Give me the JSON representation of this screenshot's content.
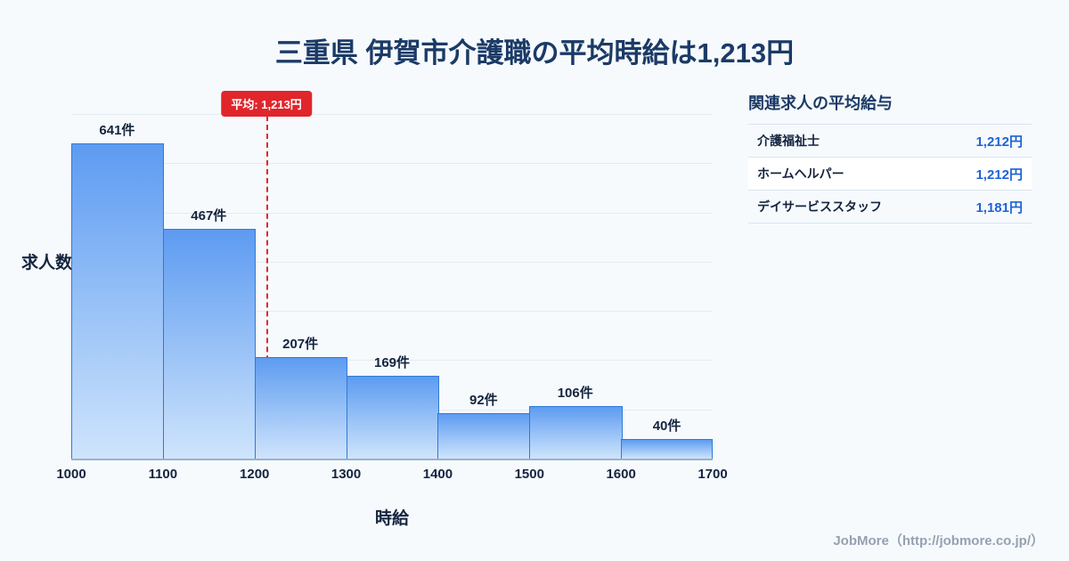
{
  "page": {
    "title": "三重県 伊賀市介護職の平均時給は1,213円",
    "footer": "JobMore（http://jobmore.co.jp/）"
  },
  "chart_data": {
    "type": "bar",
    "title": "三重県 伊賀市介護職の平均時給は1,213円",
    "xlabel": "時給",
    "ylabel": "求人数",
    "categories": [
      "1000-1100",
      "1100-1200",
      "1200-1300",
      "1300-1400",
      "1400-1500",
      "1500-1600",
      "1600-1700"
    ],
    "values": [
      641,
      467,
      207,
      169,
      92,
      106,
      40
    ],
    "bar_labels": [
      "641件",
      "467件",
      "207件",
      "169件",
      "92件",
      "106件",
      "40件"
    ],
    "x_ticks": [
      "1000",
      "1100",
      "1200",
      "1300",
      "1400",
      "1500",
      "1600",
      "1700"
    ],
    "xlim": [
      1000,
      1700
    ],
    "ylim": [
      0,
      740
    ],
    "grid": "horizontal",
    "legend": "none",
    "average": 1213,
    "average_label": "平均: 1,213円",
    "colors": {
      "bar_top": "#5d9bf1",
      "bar_bottom": "#cfe4fc",
      "bar_border": "#2e7ad8",
      "average_line": "#e02a2a",
      "title_text": "#1b3a66",
      "value_text": "#1e63d5",
      "background": "#f6fafd"
    }
  },
  "sidebar": {
    "heading": "関連求人の平均給与",
    "rows": [
      {
        "label": "介護福祉士",
        "value": "1,212円"
      },
      {
        "label": "ホームヘルパー",
        "value": "1,212円"
      },
      {
        "label": "デイサービススタッフ",
        "value": "1,181円"
      }
    ]
  }
}
